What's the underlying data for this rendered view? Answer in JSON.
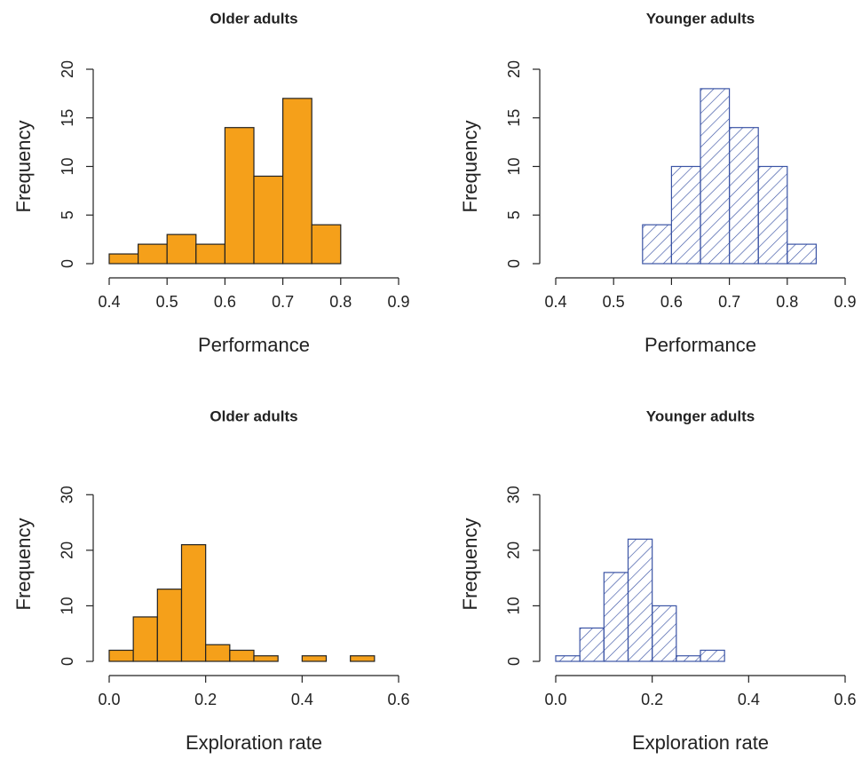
{
  "chart_data": [
    {
      "type": "histogram",
      "title": "Older adults",
      "x_label": "Performance",
      "y_label": "Frequency",
      "bins": [
        0.4,
        0.45,
        0.5,
        0.55,
        0.6,
        0.65,
        0.7,
        0.75,
        0.8
      ],
      "values": [
        1,
        2,
        3,
        2,
        14,
        9,
        17,
        4
      ],
      "color": "#f5a01a",
      "hatch": false,
      "xlim": [
        0.4,
        0.9
      ],
      "xticks": [
        0.4,
        0.5,
        0.6,
        0.7,
        0.8,
        0.9
      ],
      "ylim": [
        0,
        20
      ],
      "yticks": [
        0,
        5,
        10,
        15,
        20
      ]
    },
    {
      "type": "histogram",
      "title": "Younger adults",
      "x_label": "Performance",
      "y_label": "Frequency",
      "bins": [
        0.55,
        0.6,
        0.65,
        0.7,
        0.75,
        0.8,
        0.85
      ],
      "values": [
        4,
        10,
        18,
        14,
        10,
        2
      ],
      "color": "#3b54a5",
      "hatch": true,
      "xlim": [
        0.4,
        0.9
      ],
      "xticks": [
        0.4,
        0.5,
        0.6,
        0.7,
        0.8,
        0.9
      ],
      "ylim": [
        0,
        20
      ],
      "yticks": [
        0,
        5,
        10,
        15,
        20
      ]
    },
    {
      "type": "histogram",
      "title": "Older adults",
      "x_label": "Exploration rate",
      "y_label": "Frequency",
      "bins": [
        0,
        0.05,
        0.1,
        0.15,
        0.2,
        0.25,
        0.3,
        0.35,
        0.4,
        0.45,
        0.5,
        0.55
      ],
      "values": [
        2,
        8,
        13,
        21,
        3,
        2,
        1,
        0,
        1,
        0,
        1
      ],
      "color": "#f5a01a",
      "hatch": false,
      "xlim": [
        0,
        0.6
      ],
      "xticks": [
        {
          "value": 0,
          "label": "0.0"
        },
        0.2,
        0.4,
        0.6
      ],
      "ylim": [
        0,
        35
      ],
      "yticks": [
        0,
        10,
        20,
        30
      ]
    },
    {
      "type": "histogram",
      "title": "Younger adults",
      "x_label": "Exploration rate",
      "y_label": "Frequency",
      "bins": [
        0,
        0.05,
        0.1,
        0.15,
        0.2,
        0.25,
        0.3,
        0.35
      ],
      "values": [
        1,
        6,
        16,
        22,
        10,
        1,
        2
      ],
      "color": "#3b54a5",
      "hatch": true,
      "xlim": [
        0,
        0.6
      ],
      "xticks": [
        {
          "value": 0,
          "label": "0.0"
        },
        0.2,
        0.4,
        0.6
      ],
      "ylim": [
        0,
        35
      ],
      "yticks": [
        0,
        10,
        20,
        30
      ]
    }
  ]
}
